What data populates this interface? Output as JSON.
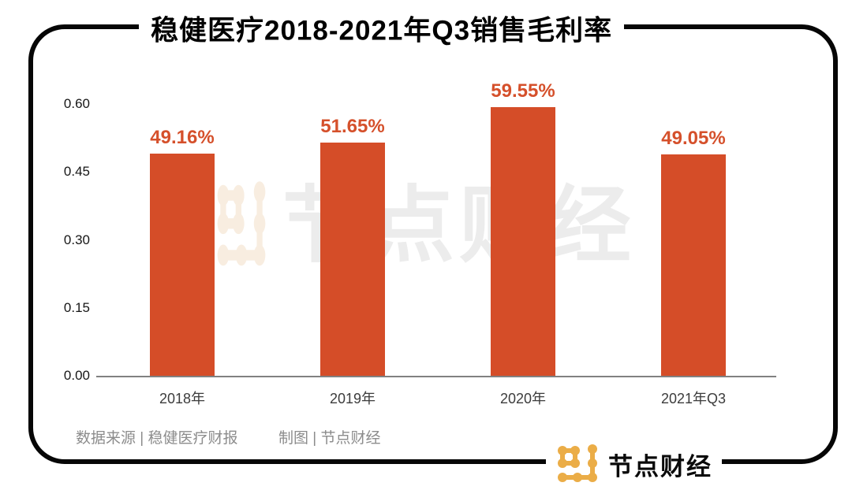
{
  "title": "稳健医疗2018-2021年Q3销售毛利率",
  "chart_data": {
    "type": "bar",
    "title": "稳健医疗2018-2021年Q3销售毛利率",
    "categories": [
      "2018年",
      "2019年",
      "2020年",
      "2021年Q3"
    ],
    "values": [
      0.4916,
      0.5165,
      0.5955,
      0.4905
    ],
    "value_labels": [
      "49.16%",
      "51.65%",
      "59.55%",
      "49.05%"
    ],
    "xlabel": "",
    "ylabel": "",
    "ylim": [
      0,
      0.6
    ],
    "yticks": [
      0.6,
      0.45,
      0.3,
      0.15,
      0.0
    ],
    "ytick_labels": [
      "0.60",
      "0.45",
      "0.30",
      "0.15",
      "0.00"
    ],
    "grid": false,
    "legend_position": "none",
    "bar_color": "#D54D28",
    "value_label_color": "#D5502B"
  },
  "footer": {
    "source": "数据来源 | 稳健医疗财报",
    "credit": "制图 | 节点财经"
  },
  "watermark": {
    "text": "节点财经"
  },
  "brand": {
    "text": "节点财经"
  },
  "colors": {
    "bar": "#D54D28",
    "frame": "#060606",
    "axis_line": "#818181",
    "footer_text": "#8c8c8c",
    "logo_gold": "#EBAD47",
    "watermark_text": "#ececec",
    "watermark_icon": "#F8EDE0"
  }
}
